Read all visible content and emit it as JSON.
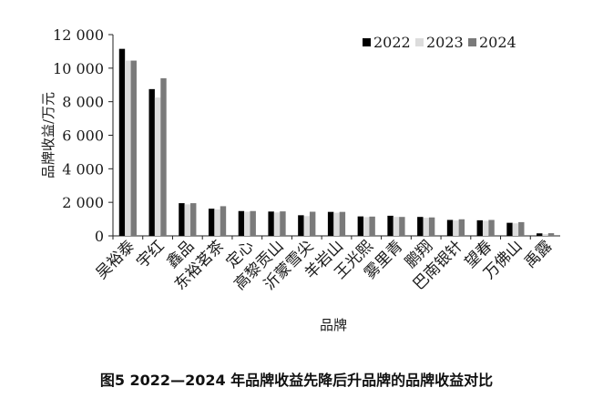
{
  "chart_data": {
    "type": "bar",
    "caption": "图5 2022—2024 年品牌收益先降后升品牌的品牌收益对比",
    "xlabel": "品牌",
    "ylabel": "品牌收益/万元",
    "ylim": [
      0,
      12000
    ],
    "yticks": [
      "0",
      "2 000",
      "4 000",
      "6 000",
      "8 000",
      "10 000",
      "12 000"
    ],
    "ytick_values": [
      0,
      2000,
      4000,
      6000,
      8000,
      10000,
      12000
    ],
    "grid": false,
    "legend_position": "top-right",
    "categories": [
      "吴裕泰",
      "宇红",
      "鑫品",
      "东裕茗茶",
      "定心",
      "高黎贡山",
      "沂蒙雪尖",
      "羊岩山",
      "王光熙",
      "雾里青",
      "鹏翔",
      "巴南银针",
      "望春",
      "万佛山",
      "禹露"
    ],
    "series": [
      {
        "name": "2022",
        "color": "#000000",
        "values": [
          11150,
          8750,
          1950,
          1620,
          1480,
          1450,
          1230,
          1430,
          1160,
          1200,
          1130,
          950,
          930,
          780,
          150
        ]
      },
      {
        "name": "2023",
        "color": "#dcdcdc",
        "values": [
          10450,
          8250,
          1880,
          1580,
          1440,
          1400,
          1180,
          1380,
          1120,
          1130,
          1080,
          920,
          900,
          750,
          100
        ]
      },
      {
        "name": "2024",
        "color": "#7a7a7a",
        "values": [
          10450,
          9400,
          1950,
          1770,
          1480,
          1460,
          1440,
          1430,
          1150,
          1130,
          1100,
          990,
          950,
          820,
          160
        ]
      }
    ]
  }
}
